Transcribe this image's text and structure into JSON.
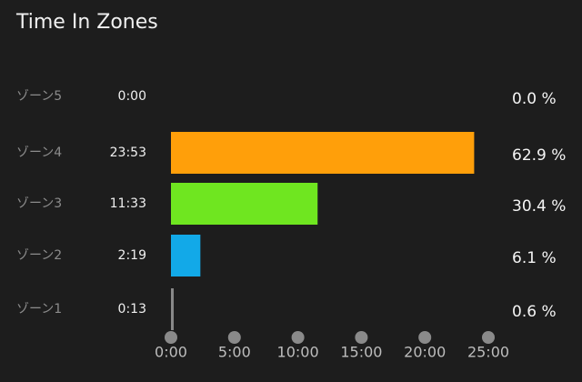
{
  "chart_data": {
    "type": "bar",
    "title": "Time In Zones",
    "categories": [
      "ゾーン5",
      "ゾーン4",
      "ゾーン3",
      "ゾーン2",
      "ゾーン1"
    ],
    "values": [
      0,
      23.8833,
      11.55,
      2.3167,
      0.2167
    ],
    "value_labels": [
      "0:00",
      "23:53",
      "11:33",
      "2:19",
      "0:13"
    ],
    "percent_labels": [
      "0.0 %",
      "62.9 %",
      "30.4 %",
      "6.1 %",
      "0.6 %"
    ],
    "colors": [
      "#888888",
      "#ff9f0a",
      "#6fe620",
      "#12a9e8",
      "#888888"
    ],
    "xlim": [
      0,
      25
    ],
    "xticks": [
      {
        "value": 0,
        "label": "0:00"
      },
      {
        "value": 5,
        "label": "5:00"
      },
      {
        "value": 10,
        "label": "10:00"
      },
      {
        "value": 15,
        "label": "15:00"
      },
      {
        "value": 20,
        "label": "20:00"
      },
      {
        "value": 25,
        "label": "25:00"
      }
    ]
  }
}
